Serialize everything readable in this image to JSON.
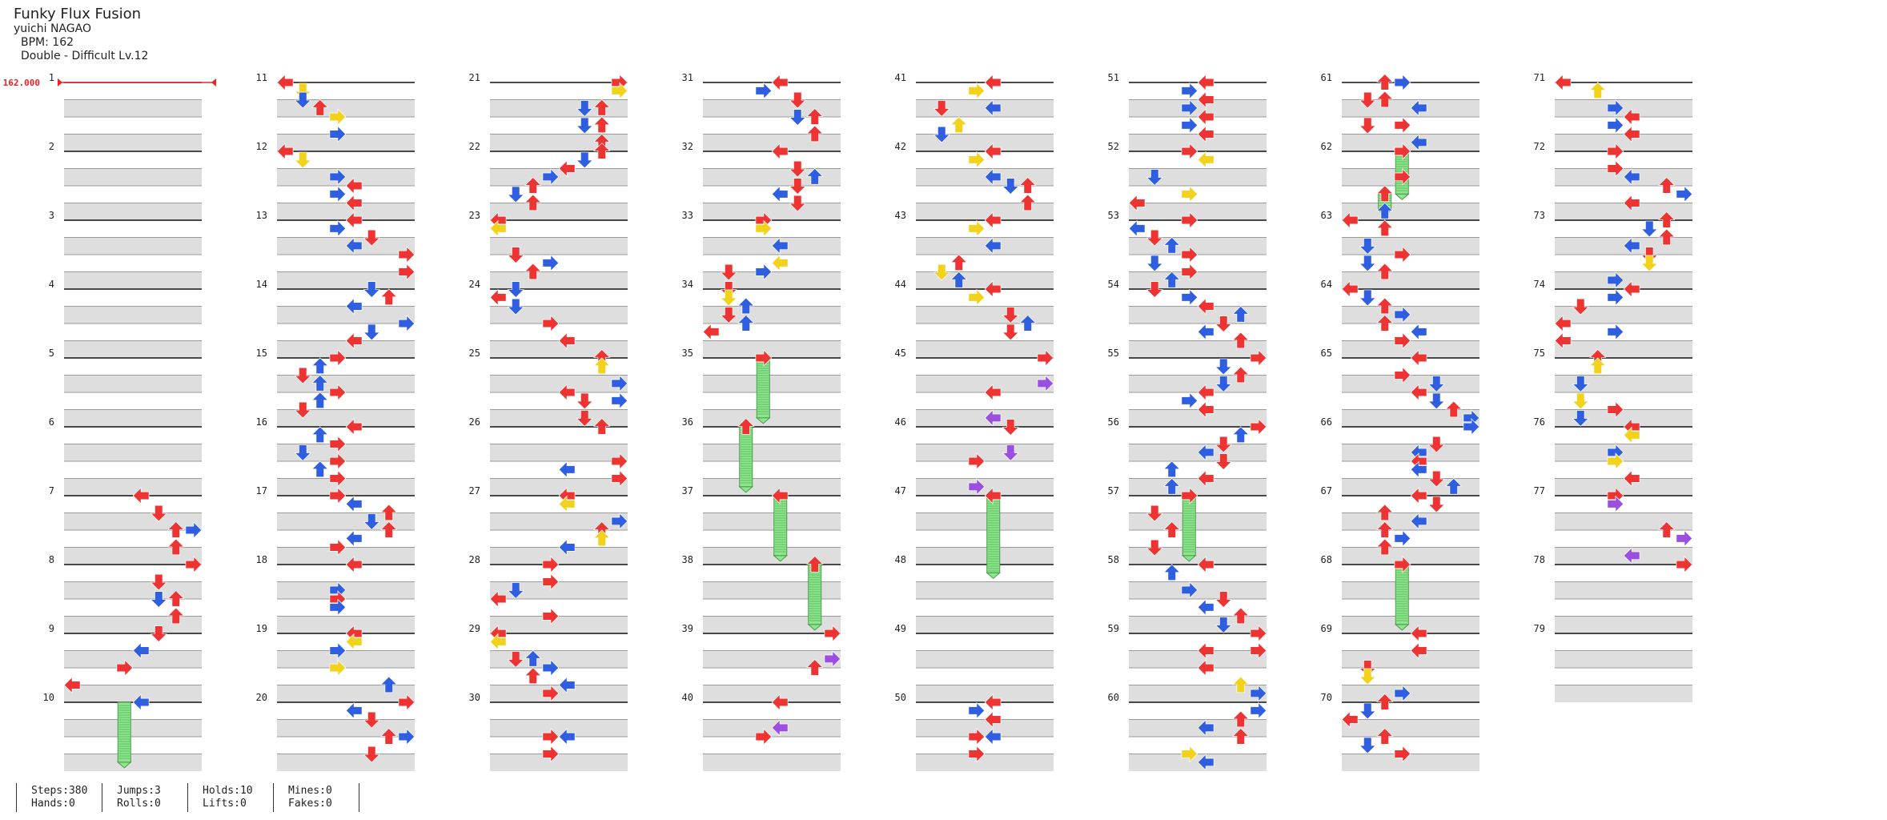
{
  "song": {
    "title": "Funky Flux Fusion",
    "artist": "yuichi NAGAO",
    "bpm_label": "BPM: 162",
    "chart_label": "Double - Difficult  Lv.12"
  },
  "bpm_marker": "162.000",
  "measures": [
    "1",
    "2",
    "3",
    "4",
    "5",
    "6",
    "7",
    "8",
    "9",
    "10",
    "11",
    "12",
    "13",
    "14",
    "15",
    "16",
    "17",
    "18",
    "19",
    "20",
    "21",
    "22",
    "23",
    "24",
    "25",
    "26",
    "27",
    "28",
    "29",
    "30",
    "31",
    "32",
    "33",
    "34",
    "35",
    "36",
    "37",
    "38",
    "39",
    "40",
    "41",
    "42",
    "43",
    "44",
    "45",
    "46",
    "47",
    "48",
    "49",
    "50",
    "51",
    "52",
    "53",
    "54",
    "55",
    "56",
    "57",
    "58",
    "59",
    "60",
    "61",
    "62",
    "63",
    "64",
    "65",
    "66",
    "67",
    "68",
    "69",
    "70",
    "71",
    "72",
    "73",
    "74",
    "75",
    "76",
    "77",
    "78",
    "79"
  ],
  "stats": {
    "steps": "Steps:380",
    "hands": "Hands:0",
    "jumps": "Jumps:3",
    "rolls": "Rolls:0",
    "holds": "Holds:10",
    "lifts": "Lifts:0",
    "mines": "Mines:0",
    "fakes": "Fakes:0"
  },
  "colors": {
    "quarter": "#ee3333",
    "eighth": "#2f5fe0",
    "sixteenth": "#f2d21a",
    "triplet": "#9a4fe0",
    "hold": "#8ee58e",
    "bpm_line": "#ee2222"
  },
  "icons": [
    "arrow-left-icon",
    "arrow-down-icon",
    "arrow-up-icon",
    "arrow-right-icon",
    "hold-note-icon"
  ],
  "notes": [
    [
      7.0,
      4,
      "r"
    ],
    [
      7.25,
      5,
      "r"
    ],
    [
      7.5,
      6,
      "r"
    ],
    [
      7.5,
      7,
      "b"
    ],
    [
      7.75,
      6,
      "r"
    ],
    [
      8.0,
      7,
      "r"
    ],
    [
      8.25,
      5,
      "r"
    ],
    [
      8.5,
      6,
      "r"
    ],
    [
      8.5,
      5,
      "b"
    ],
    [
      8.75,
      6,
      "r"
    ],
    [
      9.0,
      5,
      "r"
    ],
    [
      9.25,
      4,
      "b"
    ],
    [
      9.5,
      3,
      "r"
    ],
    [
      9.75,
      0,
      "r"
    ],
    [
      10.0,
      4,
      "b"
    ],
    [
      11.0,
      0,
      "r"
    ],
    [
      11.12,
      1,
      "y"
    ],
    [
      11.25,
      1,
      "b"
    ],
    [
      11.37,
      2,
      "r"
    ],
    [
      11.5,
      3,
      "y"
    ],
    [
      11.75,
      3,
      "b"
    ],
    [
      12.0,
      0,
      "r"
    ],
    [
      12.12,
      1,
      "y"
    ],
    [
      12.37,
      3,
      "b"
    ],
    [
      12.5,
      4,
      "r"
    ],
    [
      12.62,
      3,
      "b"
    ],
    [
      12.75,
      4,
      "r"
    ],
    [
      13.0,
      4,
      "r"
    ],
    [
      13.12,
      3,
      "b"
    ],
    [
      13.25,
      5,
      "r"
    ],
    [
      13.37,
      4,
      "b"
    ],
    [
      13.5,
      7,
      "r"
    ],
    [
      13.75,
      7,
      "r"
    ],
    [
      14.0,
      5,
      "b"
    ],
    [
      14.12,
      6,
      "r"
    ],
    [
      14.25,
      4,
      "b"
    ],
    [
      14.5,
      7,
      "b"
    ],
    [
      14.62,
      5,
      "b"
    ],
    [
      14.75,
      4,
      "r"
    ],
    [
      15.0,
      3,
      "r"
    ],
    [
      15.12,
      2,
      "b"
    ],
    [
      15.25,
      1,
      "r"
    ],
    [
      15.37,
      2,
      "b"
    ],
    [
      15.5,
      3,
      "r"
    ],
    [
      15.62,
      2,
      "b"
    ],
    [
      15.75,
      1,
      "r"
    ],
    [
      16.0,
      4,
      "r"
    ],
    [
      16.12,
      2,
      "b"
    ],
    [
      16.25,
      3,
      "r"
    ],
    [
      16.37,
      1,
      "b"
    ],
    [
      16.5,
      3,
      "r"
    ],
    [
      16.62,
      2,
      "b"
    ],
    [
      16.75,
      3,
      "r"
    ],
    [
      17.0,
      3,
      "r"
    ],
    [
      17.12,
      4,
      "b"
    ],
    [
      17.25,
      6,
      "r"
    ],
    [
      17.37,
      5,
      "b"
    ],
    [
      17.5,
      6,
      "r"
    ],
    [
      17.62,
      4,
      "b"
    ],
    [
      17.75,
      3,
      "r"
    ],
    [
      18.0,
      4,
      "r"
    ],
    [
      18.37,
      3,
      "b"
    ],
    [
      18.5,
      3,
      "r"
    ],
    [
      18.62,
      3,
      "b"
    ],
    [
      19.0,
      4,
      "r"
    ],
    [
      19.12,
      4,
      "y"
    ],
    [
      19.25,
      3,
      "b"
    ],
    [
      19.5,
      3,
      "y"
    ],
    [
      19.75,
      6,
      "b"
    ],
    [
      20.0,
      7,
      "r"
    ],
    [
      20.12,
      4,
      "b"
    ],
    [
      20.25,
      5,
      "r"
    ],
    [
      20.5,
      6,
      "r"
    ],
    [
      20.5,
      7,
      "b"
    ],
    [
      20.75,
      5,
      "r"
    ],
    [
      21.0,
      7,
      "r"
    ],
    [
      21.12,
      7,
      "y"
    ],
    [
      21.37,
      5,
      "b"
    ],
    [
      21.37,
      6,
      "r"
    ],
    [
      21.62,
      5,
      "b"
    ],
    [
      21.62,
      6,
      "r"
    ],
    [
      21.87,
      6,
      "r"
    ],
    [
      22.0,
      6,
      "r"
    ],
    [
      22.12,
      5,
      "b"
    ],
    [
      22.25,
      4,
      "r"
    ],
    [
      22.37,
      3,
      "b"
    ],
    [
      22.5,
      2,
      "r"
    ],
    [
      22.62,
      1,
      "b"
    ],
    [
      22.75,
      2,
      "r"
    ],
    [
      23.0,
      0,
      "r"
    ],
    [
      23.12,
      0,
      "y"
    ],
    [
      23.5,
      1,
      "r"
    ],
    [
      23.62,
      3,
      "b"
    ],
    [
      23.75,
      2,
      "r"
    ],
    [
      24.0,
      1,
      "b"
    ],
    [
      24.12,
      0,
      "r"
    ],
    [
      24.25,
      1,
      "b"
    ],
    [
      24.5,
      3,
      "r"
    ],
    [
      24.75,
      4,
      "r"
    ],
    [
      25.0,
      6,
      "r"
    ],
    [
      25.12,
      6,
      "y"
    ],
    [
      25.37,
      7,
      "b"
    ],
    [
      25.5,
      4,
      "r"
    ],
    [
      25.62,
      5,
      "r"
    ],
    [
      25.62,
      7,
      "b"
    ],
    [
      25.87,
      5,
      "r"
    ],
    [
      26.0,
      6,
      "r"
    ],
    [
      26.5,
      7,
      "r"
    ],
    [
      26.62,
      4,
      "b"
    ],
    [
      26.75,
      7,
      "r"
    ],
    [
      27.0,
      4,
      "r"
    ],
    [
      27.12,
      4,
      "y"
    ],
    [
      27.37,
      7,
      "b"
    ],
    [
      27.5,
      6,
      "r"
    ],
    [
      27.62,
      6,
      "y"
    ],
    [
      27.75,
      4,
      "b"
    ],
    [
      28.0,
      3,
      "r"
    ],
    [
      28.25,
      3,
      "r"
    ],
    [
      28.37,
      1,
      "b"
    ],
    [
      28.5,
      0,
      "r"
    ],
    [
      28.75,
      3,
      "r"
    ],
    [
      29.0,
      0,
      "r"
    ],
    [
      29.12,
      0,
      "y"
    ],
    [
      29.37,
      1,
      "r"
    ],
    [
      29.37,
      2,
      "b"
    ],
    [
      29.5,
      3,
      "b"
    ],
    [
      29.62,
      2,
      "r"
    ],
    [
      29.75,
      4,
      "b"
    ],
    [
      29.87,
      3,
      "r"
    ],
    [
      30.5,
      3,
      "r"
    ],
    [
      30.5,
      4,
      "b"
    ],
    [
      30.75,
      3,
      "r"
    ],
    [
      31.0,
      4,
      "r"
    ],
    [
      31.12,
      3,
      "b"
    ],
    [
      31.25,
      5,
      "r"
    ],
    [
      31.5,
      6,
      "r"
    ],
    [
      31.5,
      5,
      "b"
    ],
    [
      31.75,
      6,
      "r"
    ],
    [
      32.0,
      4,
      "r"
    ],
    [
      32.25,
      5,
      "r"
    ],
    [
      32.37,
      6,
      "b"
    ],
    [
      32.5,
      5,
      "r"
    ],
    [
      32.62,
      4,
      "b"
    ],
    [
      32.75,
      5,
      "r"
    ],
    [
      33.0,
      3,
      "r"
    ],
    [
      33.12,
      3,
      "y"
    ],
    [
      33.37,
      4,
      "b"
    ],
    [
      33.62,
      4,
      "y"
    ],
    [
      33.75,
      3,
      "b"
    ],
    [
      33.75,
      1,
      "r"
    ],
    [
      34.0,
      1,
      "r"
    ],
    [
      34.12,
      1,
      "y"
    ],
    [
      34.25,
      2,
      "b"
    ],
    [
      34.37,
      1,
      "r"
    ],
    [
      34.5,
      2,
      "b"
    ],
    [
      34.62,
      0,
      "r"
    ],
    [
      35.0,
      3,
      "r"
    ],
    [
      36.0,
      2,
      "r"
    ],
    [
      37.0,
      4,
      "r"
    ],
    [
      38.0,
      6,
      "r"
    ],
    [
      39.0,
      7,
      "r"
    ],
    [
      39.37,
      7,
      "p"
    ],
    [
      39.5,
      6,
      "r"
    ],
    [
      40.0,
      4,
      "r"
    ],
    [
      40.37,
      4,
      "p"
    ],
    [
      40.5,
      3,
      "r"
    ],
    [
      41.0,
      4,
      "r"
    ],
    [
      41.12,
      3,
      "y"
    ],
    [
      41.37,
      1,
      "r"
    ],
    [
      41.37,
      4,
      "b"
    ],
    [
      41.62,
      2,
      "y"
    ],
    [
      41.75,
      1,
      "b"
    ],
    [
      42.0,
      4,
      "r"
    ],
    [
      42.12,
      3,
      "y"
    ],
    [
      42.37,
      4,
      "b"
    ],
    [
      42.5,
      5,
      "b"
    ],
    [
      42.5,
      6,
      "r"
    ],
    [
      42.75,
      6,
      "r"
    ],
    [
      43.0,
      4,
      "r"
    ],
    [
      43.12,
      3,
      "y"
    ],
    [
      43.37,
      4,
      "b"
    ],
    [
      43.62,
      2,
      "r"
    ],
    [
      43.75,
      1,
      "y"
    ],
    [
      43.87,
      2,
      "b"
    ],
    [
      44.0,
      4,
      "r"
    ],
    [
      44.12,
      3,
      "y"
    ],
    [
      44.37,
      5,
      "r"
    ],
    [
      44.5,
      6,
      "b"
    ],
    [
      44.62,
      5,
      "r"
    ],
    [
      45.0,
      7,
      "r"
    ],
    [
      45.37,
      7,
      "p"
    ],
    [
      45.5,
      4,
      "r"
    ],
    [
      45.87,
      4,
      "p"
    ],
    [
      46.0,
      5,
      "r"
    ],
    [
      46.37,
      5,
      "p"
    ],
    [
      46.5,
      3,
      "r"
    ],
    [
      46.87,
      3,
      "p"
    ],
    [
      47.0,
      4,
      "r"
    ],
    [
      50.0,
      4,
      "r"
    ],
    [
      50.12,
      3,
      "b"
    ],
    [
      50.25,
      4,
      "r"
    ],
    [
      50.5,
      3,
      "r"
    ],
    [
      50.5,
      4,
      "b"
    ],
    [
      50.75,
      3,
      "r"
    ],
    [
      51.0,
      4,
      "r"
    ],
    [
      51.12,
      3,
      "b"
    ],
    [
      51.25,
      4,
      "r"
    ],
    [
      51.37,
      3,
      "b"
    ],
    [
      51.5,
      4,
      "r"
    ],
    [
      51.62,
      3,
      "b"
    ],
    [
      51.75,
      4,
      "r"
    ],
    [
      52.0,
      3,
      "r"
    ],
    [
      52.12,
      4,
      "y"
    ],
    [
      52.37,
      1,
      "b"
    ],
    [
      52.62,
      3,
      "y"
    ],
    [
      52.75,
      0,
      "r"
    ],
    [
      53.0,
      3,
      "r"
    ],
    [
      53.12,
      0,
      "b"
    ],
    [
      53.25,
      1,
      "r"
    ],
    [
      53.37,
      2,
      "b"
    ],
    [
      53.5,
      3,
      "r"
    ],
    [
      53.62,
      1,
      "b"
    ],
    [
      53.75,
      3,
      "r"
    ],
    [
      53.87,
      2,
      "b"
    ],
    [
      54.0,
      1,
      "r"
    ],
    [
      54.12,
      3,
      "b"
    ],
    [
      54.25,
      4,
      "r"
    ],
    [
      54.37,
      6,
      "b"
    ],
    [
      54.5,
      5,
      "r"
    ],
    [
      54.62,
      4,
      "b"
    ],
    [
      54.75,
      6,
      "r"
    ],
    [
      55.0,
      7,
      "r"
    ],
    [
      55.12,
      5,
      "b"
    ],
    [
      55.25,
      6,
      "r"
    ],
    [
      55.37,
      5,
      "b"
    ],
    [
      55.5,
      4,
      "r"
    ],
    [
      55.62,
      3,
      "b"
    ],
    [
      55.75,
      4,
      "r"
    ],
    [
      56.0,
      7,
      "r"
    ],
    [
      56.12,
      6,
      "b"
    ],
    [
      56.25,
      5,
      "r"
    ],
    [
      56.37,
      4,
      "b"
    ],
    [
      56.5,
      5,
      "r"
    ],
    [
      56.62,
      2,
      "b"
    ],
    [
      56.75,
      4,
      "r"
    ],
    [
      56.87,
      2,
      "b"
    ],
    [
      57.0,
      3,
      "r"
    ],
    [
      57.25,
      1,
      "r"
    ],
    [
      57.5,
      2,
      "r"
    ],
    [
      57.75,
      1,
      "r"
    ],
    [
      58.0,
      4,
      "r"
    ],
    [
      58.12,
      2,
      "b"
    ],
    [
      58.37,
      3,
      "b"
    ],
    [
      58.5,
      5,
      "r"
    ],
    [
      58.62,
      4,
      "b"
    ],
    [
      58.75,
      6,
      "r"
    ],
    [
      58.87,
      5,
      "b"
    ],
    [
      59.0,
      7,
      "r"
    ],
    [
      59.25,
      4,
      "r"
    ],
    [
      59.25,
      7,
      "r"
    ],
    [
      59.5,
      4,
      "r"
    ],
    [
      59.75,
      6,
      "y"
    ],
    [
      59.87,
      7,
      "b"
    ],
    [
      60.12,
      7,
      "b"
    ],
    [
      60.25,
      6,
      "r"
    ],
    [
      60.37,
      4,
      "b"
    ],
    [
      60.5,
      6,
      "r"
    ],
    [
      60.75,
      3,
      "y"
    ],
    [
      60.87,
      4,
      "b"
    ],
    [
      61.0,
      2,
      "r"
    ],
    [
      61.0,
      3,
      "b"
    ],
    [
      61.25,
      1,
      "r"
    ],
    [
      61.25,
      2,
      "r"
    ],
    [
      61.37,
      4,
      "b"
    ],
    [
      61.62,
      1,
      "r"
    ],
    [
      61.62,
      3,
      "r"
    ],
    [
      61.87,
      4,
      "b"
    ],
    [
      62.0,
      3,
      "r"
    ],
    [
      62.37,
      3,
      "r"
    ],
    [
      62.62,
      2,
      "r"
    ],
    [
      62.87,
      2,
      "b"
    ],
    [
      63.0,
      0,
      "r"
    ],
    [
      63.12,
      2,
      "r"
    ],
    [
      63.37,
      1,
      "b"
    ],
    [
      63.5,
      3,
      "r"
    ],
    [
      63.62,
      1,
      "b"
    ],
    [
      63.75,
      2,
      "r"
    ],
    [
      64.0,
      0,
      "r"
    ],
    [
      64.12,
      1,
      "b"
    ],
    [
      64.25,
      2,
      "r"
    ],
    [
      64.37,
      3,
      "b"
    ],
    [
      64.5,
      2,
      "r"
    ],
    [
      64.62,
      4,
      "b"
    ],
    [
      64.75,
      3,
      "r"
    ],
    [
      65.0,
      4,
      "r"
    ],
    [
      65.25,
      3,
      "r"
    ],
    [
      65.37,
      5,
      "b"
    ],
    [
      65.5,
      4,
      "r"
    ],
    [
      65.62,
      5,
      "b"
    ],
    [
      65.75,
      6,
      "r"
    ],
    [
      65.87,
      7,
      "b"
    ],
    [
      66.0,
      7,
      "b"
    ],
    [
      66.25,
      5,
      "r"
    ],
    [
      66.37,
      4,
      "b"
    ],
    [
      66.5,
      4,
      "r"
    ],
    [
      66.62,
      4,
      "b"
    ],
    [
      66.75,
      5,
      "r"
    ],
    [
      66.87,
      6,
      "b"
    ],
    [
      67.0,
      4,
      "r"
    ],
    [
      67.12,
      5,
      "r"
    ],
    [
      67.25,
      2,
      "r"
    ],
    [
      67.37,
      4,
      "b"
    ],
    [
      67.5,
      2,
      "r"
    ],
    [
      67.62,
      3,
      "b"
    ],
    [
      67.75,
      2,
      "r"
    ],
    [
      68.0,
      3,
      "r"
    ],
    [
      69.0,
      4,
      "r"
    ],
    [
      69.25,
      4,
      "r"
    ],
    [
      69.5,
      1,
      "r"
    ],
    [
      69.62,
      1,
      "y"
    ],
    [
      69.87,
      3,
      "b"
    ],
    [
      70.0,
      2,
      "r"
    ],
    [
      70.12,
      1,
      "b"
    ],
    [
      70.25,
      0,
      "r"
    ],
    [
      70.5,
      2,
      "r"
    ],
    [
      70.62,
      1,
      "b"
    ],
    [
      70.75,
      3,
      "r"
    ],
    [
      71.0,
      0,
      "r"
    ],
    [
      71.12,
      2,
      "y"
    ],
    [
      71.37,
      3,
      "b"
    ],
    [
      71.5,
      4,
      "r"
    ],
    [
      71.62,
      3,
      "b"
    ],
    [
      71.75,
      4,
      "r"
    ],
    [
      72.0,
      3,
      "r"
    ],
    [
      72.25,
      3,
      "r"
    ],
    [
      72.37,
      4,
      "b"
    ],
    [
      72.5,
      6,
      "r"
    ],
    [
      72.62,
      7,
      "b"
    ],
    [
      72.75,
      4,
      "r"
    ],
    [
      73.0,
      6,
      "r"
    ],
    [
      73.12,
      5,
      "b"
    ],
    [
      73.25,
      6,
      "r"
    ],
    [
      73.37,
      4,
      "b"
    ],
    [
      73.5,
      5,
      "r"
    ],
    [
      73.62,
      5,
      "y"
    ],
    [
      73.87,
      3,
      "b"
    ],
    [
      74.0,
      4,
      "r"
    ],
    [
      74.12,
      3,
      "b"
    ],
    [
      74.25,
      1,
      "r"
    ],
    [
      74.5,
      0,
      "r"
    ],
    [
      74.62,
      3,
      "b"
    ],
    [
      74.75,
      0,
      "r"
    ],
    [
      75.0,
      2,
      "r"
    ],
    [
      75.12,
      2,
      "y"
    ],
    [
      75.37,
      1,
      "b"
    ],
    [
      75.62,
      1,
      "y"
    ],
    [
      75.75,
      3,
      "r"
    ],
    [
      75.87,
      1,
      "b"
    ],
    [
      76.0,
      4,
      "r"
    ],
    [
      76.12,
      4,
      "y"
    ],
    [
      76.37,
      3,
      "b"
    ],
    [
      76.5,
      3,
      "y"
    ],
    [
      76.75,
      4,
      "r"
    ],
    [
      77.0,
      3,
      "r"
    ],
    [
      77.12,
      3,
      "p"
    ],
    [
      77.5,
      6,
      "r"
    ],
    [
      77.62,
      7,
      "p"
    ],
    [
      77.87,
      4,
      "p"
    ],
    [
      78.0,
      7,
      "r"
    ]
  ],
  "holds": [
    [
      10.0,
      10.87,
      3,
      "b"
    ],
    [
      35.0,
      35.87,
      3,
      "r"
    ],
    [
      36.0,
      36.87,
      2,
      "r"
    ],
    [
      37.0,
      37.87,
      4,
      "r"
    ],
    [
      38.0,
      38.87,
      6,
      "r"
    ],
    [
      47.0,
      48.12,
      4,
      "r"
    ],
    [
      57.0,
      57.87,
      3,
      "r"
    ],
    [
      62.0,
      62.62,
      3,
      "r"
    ],
    [
      68.0,
      68.87,
      3,
      "r"
    ],
    [
      62.6,
      62.85,
      2,
      "r"
    ]
  ]
}
